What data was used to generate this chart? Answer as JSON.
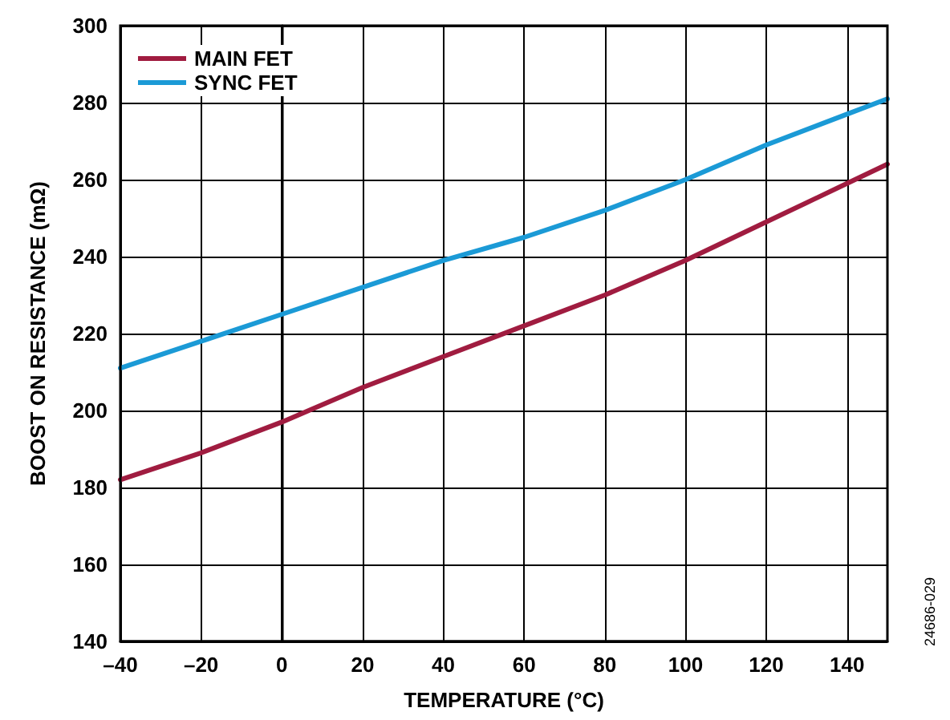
{
  "chart_data": {
    "type": "line",
    "xlabel": "TEMPERATURE (°C)",
    "ylabel": "BOOST ON RESISTANCE (mΩ)",
    "x": [
      -40,
      -20,
      0,
      20,
      40,
      60,
      80,
      100,
      120,
      140,
      150
    ],
    "series": [
      {
        "name": "MAIN FET",
        "color": "#a01c40",
        "values": [
          182,
          189,
          197,
          206,
          214,
          222,
          230,
          239,
          249,
          259,
          264
        ]
      },
      {
        "name": "SYNC FET",
        "color": "#1b9ad6",
        "values": [
          211,
          218,
          225,
          232,
          239,
          245,
          252,
          260,
          269,
          277,
          281
        ]
      }
    ],
    "xlim": [
      -40,
      150
    ],
    "xticks": [
      {
        "value": -40,
        "label": "–40"
      },
      {
        "value": -20,
        "label": "–20"
      },
      0,
      20,
      40,
      60,
      80,
      100,
      120,
      140
    ],
    "ylim": [
      140,
      300
    ],
    "yticks": [
      140,
      160,
      180,
      200,
      220,
      240,
      260,
      280,
      300
    ],
    "grid": true,
    "legend": "top left",
    "marker": "none",
    "line_style": "solid",
    "annotations": [
      "24686-029"
    ]
  }
}
